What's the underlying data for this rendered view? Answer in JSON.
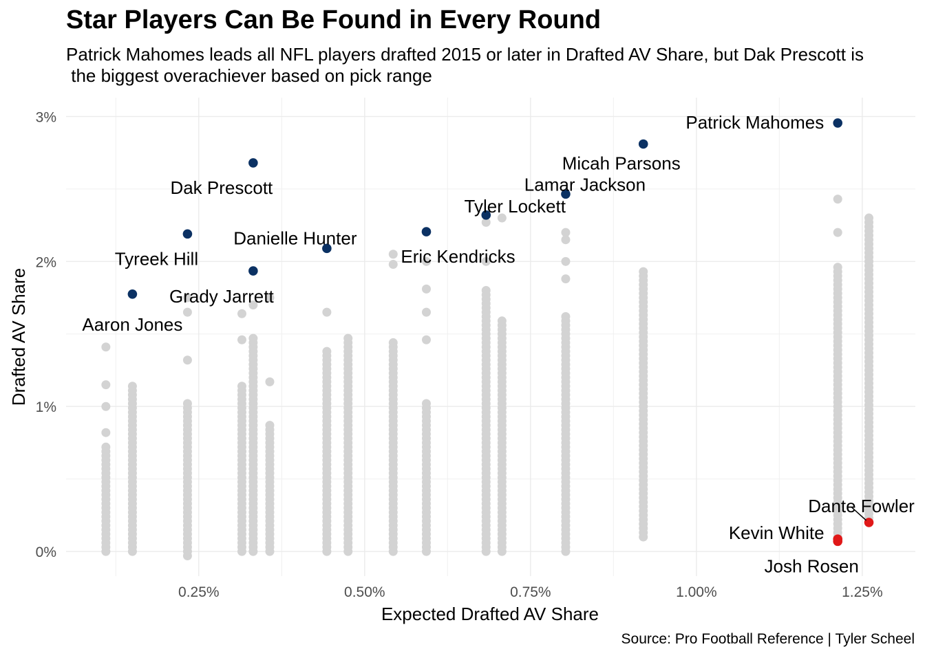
{
  "chart_data": {
    "type": "scatter",
    "title": "Star Players Can Be Found in Every Round",
    "subtitle": "Patrick Mahomes leads all NFL players drafted 2015 or later in Drafted AV Share, but Dak Prescott is\n the biggest overachiever based on pick range",
    "xlabel": "Expected Drafted AV Share",
    "ylabel": "Drafted AV Share",
    "caption": "Source: Pro Football Reference | Tyler Scheel",
    "xlim": [
      0.0005,
      0.0133
    ],
    "ylim": [
      -0.0017,
      0.0313
    ],
    "x_ticks": [
      {
        "value": 0.0025,
        "label": "0.25%"
      },
      {
        "value": 0.005,
        "label": "0.50%"
      },
      {
        "value": 0.0075,
        "label": "0.75%"
      },
      {
        "value": 0.01,
        "label": "1.00%"
      },
      {
        "value": 0.0125,
        "label": "1.25%"
      }
    ],
    "y_ticks": [
      {
        "value": 0,
        "label": "0%"
      },
      {
        "value": 0.01,
        "label": "1%"
      },
      {
        "value": 0.02,
        "label": "2%"
      },
      {
        "value": 0.03,
        "label": "3%"
      }
    ],
    "grid": true,
    "legend": "none",
    "colors": {
      "other": "#d3d3d3",
      "star": "#0b3163",
      "bust": "#e01818"
    },
    "background_points": {
      "color": "#d3d3d3",
      "columns": [
        {
          "x": 0.0011,
          "y_min": 0.0,
          "y_max": 0.0072,
          "extra": [
            0.0082,
            0.01,
            0.0115,
            0.0141
          ]
        },
        {
          "x": 0.0015,
          "y_min": 0.0,
          "y_max": 0.0116,
          "extra": []
        },
        {
          "x": 0.00233,
          "y_min": -0.0003,
          "y_max": 0.0102,
          "extra": [
            0.0132,
            0.0165,
            0.0175
          ]
        },
        {
          "x": 0.00315,
          "y_min": 0.0,
          "y_max": 0.0115,
          "extra": [
            0.0146,
            0.0164
          ]
        },
        {
          "x": 0.00332,
          "y_min": 0.0,
          "y_max": 0.0148,
          "extra": [
            0.017
          ]
        },
        {
          "x": 0.00357,
          "y_min": 0.0,
          "y_max": 0.0087,
          "extra": [
            0.0117,
            0.0175
          ]
        },
        {
          "x": 0.00443,
          "y_min": 0.0,
          "y_max": 0.0139,
          "extra": [
            0.0165
          ]
        },
        {
          "x": 0.00475,
          "y_min": 0.0,
          "y_max": 0.0148,
          "extra": []
        },
        {
          "x": 0.00543,
          "y_min": 0.0,
          "y_max": 0.0146,
          "extra": [
            0.0198,
            0.0205
          ]
        },
        {
          "x": 0.00593,
          "y_min": 0.0,
          "y_max": 0.0104,
          "extra": [
            0.0146,
            0.0165,
            0.0181,
            0.02
          ]
        },
        {
          "x": 0.00683,
          "y_min": 0.0,
          "y_max": 0.0181,
          "extra": [
            0.02,
            0.0227
          ]
        },
        {
          "x": 0.00707,
          "y_min": 0.0,
          "y_max": 0.016,
          "extra": [
            0.023
          ]
        },
        {
          "x": 0.00803,
          "y_min": 0.0,
          "y_max": 0.0163,
          "extra": [
            0.0188,
            0.02,
            0.0215,
            0.022
          ]
        },
        {
          "x": 0.0092,
          "y_min": 0.001,
          "y_max": 0.0193,
          "extra": []
        },
        {
          "x": 0.01213,
          "y_min": 0.001,
          "y_max": 0.0197,
          "extra": [
            0.022,
            0.0243
          ]
        },
        {
          "x": 0.0126,
          "y_min": 0.002,
          "y_max": 0.023,
          "extra": []
        }
      ]
    },
    "highlighted_points": [
      {
        "name": "Patrick Mahomes",
        "x": 0.01213,
        "y": 0.02955,
        "group": "star"
      },
      {
        "name": "Micah Parsons",
        "x": 0.0092,
        "y": 0.0281,
        "group": "star"
      },
      {
        "name": "Dak Prescott",
        "x": 0.00332,
        "y": 0.0268,
        "group": "star"
      },
      {
        "name": "Lamar Jackson",
        "x": 0.00803,
        "y": 0.02465,
        "group": "star"
      },
      {
        "name": "Tyler Lockett",
        "x": 0.00683,
        "y": 0.0232,
        "group": "star"
      },
      {
        "name": "Eric Kendricks",
        "x": 0.00593,
        "y": 0.02205,
        "group": "star"
      },
      {
        "name": "Tyreek Hill",
        "x": 0.00233,
        "y": 0.0219,
        "group": "star"
      },
      {
        "name": "Danielle Hunter",
        "x": 0.00443,
        "y": 0.0209,
        "group": "star"
      },
      {
        "name": "Grady Jarrett",
        "x": 0.00332,
        "y": 0.01935,
        "group": "star"
      },
      {
        "name": "Aaron Jones",
        "x": 0.0015,
        "y": 0.01775,
        "group": "star"
      },
      {
        "name": "Dante Fowler",
        "x": 0.0126,
        "y": 0.002,
        "group": "bust"
      },
      {
        "name": "Kevin White",
        "x": 0.01213,
        "y": 0.00085,
        "group": "bust"
      },
      {
        "name": "Josh Rosen",
        "x": 0.01213,
        "y": 0.0007,
        "group": "bust"
      }
    ]
  }
}
